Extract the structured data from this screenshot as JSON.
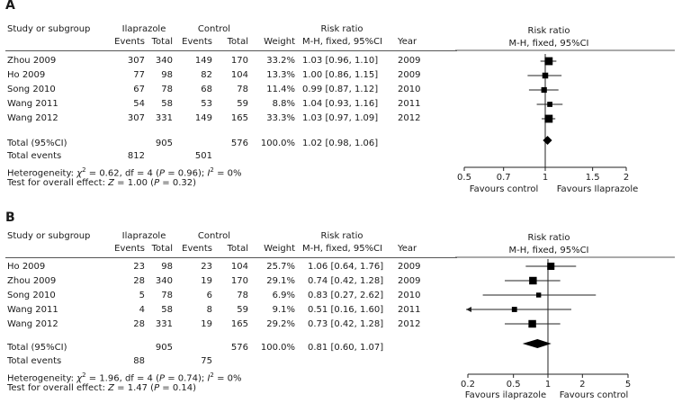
{
  "panels": [
    {
      "letter": "A",
      "headers": {
        "study": "Study or subgroup",
        "group1": "Ilaprazole",
        "group2": "Control",
        "rr_title": "Risk ratio",
        "events": "Events",
        "total": "Total",
        "weight": "Weight",
        "method": "M-H, fixed, 95%CI",
        "year": "Year",
        "plot_title": "Risk ratio",
        "plot_method": "M-H, fixed, 95%CI"
      },
      "rows": [
        {
          "study": "Zhou 2009",
          "e1": "307",
          "t1": "340",
          "e2": "149",
          "t2": "170",
          "weight": "33.2%",
          "ci": "1.03 [0.96, 1.10]",
          "year": "2009"
        },
        {
          "study": "Ho 2009",
          "e1": "77",
          "t1": "98",
          "e2": "82",
          "t2": "104",
          "weight": "13.3%",
          "ci": "1.00 [0.86, 1.15]",
          "year": "2009"
        },
        {
          "study": "Song 2010",
          "e1": "67",
          "t1": "78",
          "e2": "68",
          "t2": "78",
          "weight": "11.4%",
          "ci": "0.99 [0.87, 1.12]",
          "year": "2010"
        },
        {
          "study": "Wang 2011",
          "e1": "54",
          "t1": "58",
          "e2": "53",
          "t2": "59",
          "weight": "8.8%",
          "ci": "1.04 [0.93, 1.16]",
          "year": "2011"
        },
        {
          "study": "Wang 2012",
          "e1": "307",
          "t1": "331",
          "e2": "149",
          "t2": "165",
          "weight": "33.3%",
          "ci": "1.03 [0.97, 1.09]",
          "year": "2012"
        }
      ],
      "total": {
        "label": "Total (95%CI)",
        "t1": "905",
        "t2": "576",
        "weight": "100.0%",
        "ci": "1.02 [0.98, 1.06]"
      },
      "events_total": {
        "label": "Total events",
        "e1": "812",
        "e2": "501"
      },
      "heterogeneity": {
        "prefix": "Heterogeneity: ",
        "chi": "χ",
        "chi_sup": "2",
        "chi_val": " = 0.62, df = 4 (",
        "p": "P",
        "p_val": " = 0.96); ",
        "i": "I",
        "i_sup": "2",
        "i_val": " = 0%"
      },
      "overall": {
        "prefix": "Test for overall effect: ",
        "z": "Z",
        "z_val": " = 1.00 (",
        "p": "P",
        "p_val": " = 0.32)"
      },
      "favours_left": "Favours control",
      "favours_right": "Favours Ilaprazole"
    },
    {
      "letter": "B",
      "headers": {
        "study": "Study or subgroup",
        "group1": "Ilaprazole",
        "group2": "Control",
        "rr_title": "Risk ratio",
        "events": "Events",
        "total": "Total",
        "weight": "Weight",
        "method": "M-H, fixed, 95%CI",
        "year": "Year",
        "plot_title": "Risk ratio",
        "plot_method": "M-H, fixed, 95%CI"
      },
      "rows": [
        {
          "study": "Ho 2009",
          "e1": "23",
          "t1": "98",
          "e2": "23",
          "t2": "104",
          "weight": "25.7%",
          "ci": "1.06 [0.64, 1.76]",
          "year": "2009"
        },
        {
          "study": "Zhou 2009",
          "e1": "28",
          "t1": "340",
          "e2": "19",
          "t2": "170",
          "weight": "29.1%",
          "ci": "0.74 [0.42, 1.28]",
          "year": "2009"
        },
        {
          "study": "Song 2010",
          "e1": "5",
          "t1": "78",
          "e2": "6",
          "t2": "78",
          "weight": "6.9%",
          "ci": "0.83 [0.27, 2.62]",
          "year": "2010"
        },
        {
          "study": "Wang 2011",
          "e1": "4",
          "t1": "58",
          "e2": "8",
          "t2": "59",
          "weight": "9.1%",
          "ci": "0.51 [0.16, 1.60]",
          "year": "2011"
        },
        {
          "study": "Wang 2012",
          "e1": "28",
          "t1": "331",
          "e2": "19",
          "t2": "165",
          "weight": "29.2%",
          "ci": "0.73 [0.42, 1.28]",
          "year": "2012"
        }
      ],
      "total": {
        "label": "Total (95%CI)",
        "t1": "905",
        "t2": "576",
        "weight": "100.0%",
        "ci": "0.81 [0.60, 1.07]"
      },
      "events_total": {
        "label": "Total events",
        "e1": "88",
        "e2": "75"
      },
      "heterogeneity": {
        "prefix": "Heterogeneity: ",
        "chi": "χ",
        "chi_sup": "2",
        "chi_val": " = 1.96, df = 4 (",
        "p": "P",
        "p_val": " = 0.74); ",
        "i": "I",
        "i_sup": "2",
        "i_val": " = 0%"
      },
      "overall": {
        "prefix": "Test for overall effect: ",
        "z": "Z",
        "z_val": " = 1.47 (",
        "p": "P",
        "p_val": " = 0.14)"
      },
      "favours_left": "Favours ilaprazole",
      "favours_right": "Favours control"
    }
  ],
  "chart_data": [
    {
      "type": "forest",
      "scale": "log",
      "xlim": [
        0.5,
        2
      ],
      "ticks": [
        0.5,
        0.7,
        1,
        1.5,
        2
      ],
      "tick_labels": [
        "0.5",
        "0.7",
        "1",
        "1.5",
        "2"
      ],
      "reference_line": 1,
      "studies": [
        {
          "name": "Zhou 2009",
          "rr": 1.03,
          "lo": 0.96,
          "hi": 1.1,
          "weight": 33.2
        },
        {
          "name": "Ho 2009",
          "rr": 1.0,
          "lo": 0.86,
          "hi": 1.15,
          "weight": 13.3
        },
        {
          "name": "Song 2010",
          "rr": 0.99,
          "lo": 0.87,
          "hi": 1.12,
          "weight": 11.4
        },
        {
          "name": "Wang 2011",
          "rr": 1.04,
          "lo": 0.93,
          "hi": 1.16,
          "weight": 8.8
        },
        {
          "name": "Wang 2012",
          "rr": 1.03,
          "lo": 0.97,
          "hi": 1.09,
          "weight": 33.3
        }
      ],
      "pooled": {
        "rr": 1.02,
        "lo": 0.98,
        "hi": 1.06
      },
      "xlabel_left": "Favours control",
      "xlabel_right": "Favours Ilaprazole"
    },
    {
      "type": "forest",
      "scale": "log",
      "xlim": [
        0.2,
        5
      ],
      "ticks": [
        0.2,
        0.5,
        1,
        2,
        5
      ],
      "tick_labels": [
        "0.2",
        "0.5",
        "1",
        "2",
        "5"
      ],
      "reference_line": 1,
      "studies": [
        {
          "name": "Ho 2009",
          "rr": 1.06,
          "lo": 0.64,
          "hi": 1.76,
          "weight": 25.7
        },
        {
          "name": "Zhou 2009",
          "rr": 0.74,
          "lo": 0.42,
          "hi": 1.28,
          "weight": 29.1
        },
        {
          "name": "Song 2010",
          "rr": 0.83,
          "lo": 0.27,
          "hi": 2.62,
          "weight": 6.9
        },
        {
          "name": "Wang 2011",
          "rr": 0.51,
          "lo": 0.16,
          "hi": 1.6,
          "weight": 9.1
        },
        {
          "name": "Wang 2012",
          "rr": 0.73,
          "lo": 0.42,
          "hi": 1.28,
          "weight": 29.2
        }
      ],
      "pooled": {
        "rr": 0.81,
        "lo": 0.6,
        "hi": 1.07
      },
      "xlabel_left": "Favours ilaprazole",
      "xlabel_right": "Favours control"
    }
  ]
}
